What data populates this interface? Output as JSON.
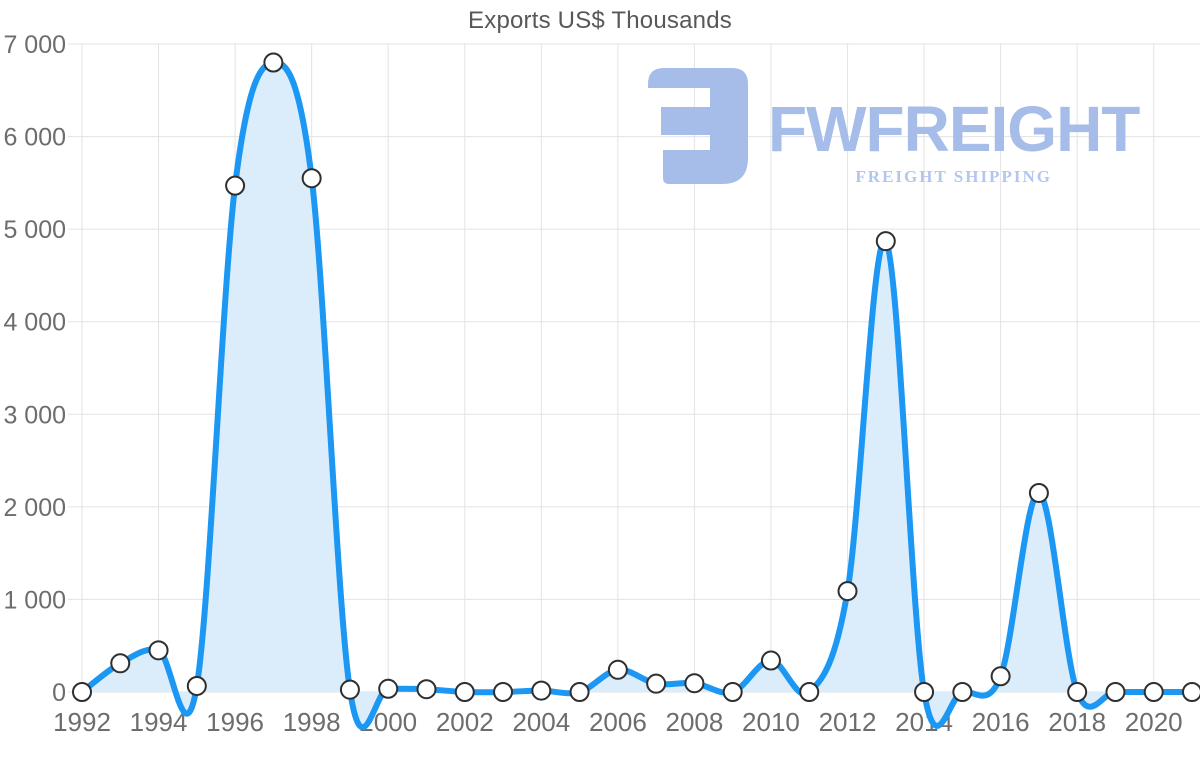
{
  "watermark": {
    "brand": "FWFREIGHT",
    "tagline": "FREIGHT SHIPPING",
    "color": "#a6bce9"
  },
  "chart_data": {
    "type": "area",
    "title": "Exports US$ Thousands",
    "xlabel": "",
    "ylabel": "",
    "x": [
      1992,
      1993,
      1994,
      1995,
      1996,
      1997,
      1998,
      1999,
      2000,
      2001,
      2002,
      2003,
      2004,
      2005,
      2006,
      2007,
      2008,
      2009,
      2010,
      2011,
      2012,
      2013,
      2014,
      2015,
      2016,
      2017,
      2018,
      2019,
      2020,
      2021
    ],
    "values": [
      0,
      310,
      450,
      65,
      5470,
      6800,
      5550,
      25,
      35,
      30,
      0,
      0,
      15,
      0,
      240,
      90,
      95,
      0,
      340,
      0,
      1090,
      4870,
      0,
      0,
      170,
      2150,
      0,
      0,
      0,
      0
    ],
    "ylim": [
      0,
      7000
    ],
    "yticks": [
      0,
      1000,
      2000,
      3000,
      4000,
      5000,
      6000,
      7000
    ],
    "ytick_labels": [
      "0",
      "1 000",
      "2 000",
      "3 000",
      "4 000",
      "5 000",
      "6 000",
      "7 000"
    ],
    "xtick_years": [
      1992,
      1994,
      1996,
      1998,
      2000,
      2002,
      2004,
      2006,
      2008,
      2010,
      2012,
      2014,
      2016,
      2018,
      2020
    ],
    "xtick_labels": [
      "1992",
      "1994",
      "1996",
      "1998",
      "2000",
      "2002",
      "2004",
      "2006",
      "2008",
      "2010",
      "2012",
      "2014",
      "2016",
      "2018",
      "2020"
    ],
    "grid": true,
    "legend": "none",
    "smoothing": "catmull-rom",
    "colors": {
      "line": "#1c97f3",
      "fill": "#dbedfb",
      "marker_fill": "#ffffff",
      "marker_stroke": "#2f2f2f",
      "grid": "#e3e3e3",
      "tick_text": "#6d6d6d",
      "title_text": "#58585a"
    }
  }
}
